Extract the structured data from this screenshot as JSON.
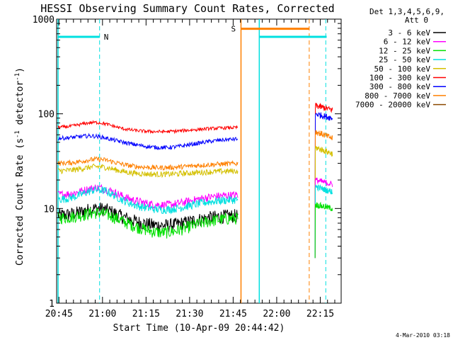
{
  "chart_data": {
    "type": "line",
    "title": "HESSI Observing Summary Count Rates, Corrected",
    "xlabel": "Start Time (10-Apr-09 20:44:42)",
    "ylabel_main": "Corrected Count Rate (s",
    "ylabel_sup1": "-1",
    "ylabel_mid": " detector",
    "ylabel_sup2": "-1",
    "ylabel_end": ")",
    "yscale": "log",
    "ylim": [
      1,
      1000
    ],
    "y_ticks": [
      1,
      10,
      100,
      1000
    ],
    "y_tick_labels": [
      "1",
      "10",
      "100",
      "1000"
    ],
    "xlim_minutes": [
      -0.5,
      97.5
    ],
    "x_ticks_minutes": [
      0.3,
      15.3,
      30.3,
      45.3,
      60.3,
      75.3,
      90.3
    ],
    "x_tick_labels": [
      "20:45",
      "21:00",
      "21:15",
      "21:30",
      "21:45",
      "22:00",
      "22:15"
    ],
    "legend_title": "Det 1,3,4,5,6,9,",
    "legend_subtitle": "Att 0",
    "series": [
      {
        "name": "3 - 6 keV",
        "color": "#000000"
      },
      {
        "name": "6 - 12 keV",
        "color": "#ff00ff"
      },
      {
        "name": "12 - 25 keV",
        "color": "#00e000"
      },
      {
        "name": "25 - 50 keV",
        "color": "#00e0e0"
      },
      {
        "name": "50 - 100 keV",
        "color": "#d4c000"
      },
      {
        "name": "100 - 300 keV",
        "color": "#ff0000"
      },
      {
        "name": "300 - 800 keV",
        "color": "#0000ff"
      },
      {
        "name": "800 - 7000 keV",
        "color": "#ff8000"
      },
      {
        "name": "7000 - 20000 keV",
        "color": "#8b4a00"
      }
    ],
    "flags": [
      {
        "label": "N",
        "color": "#00e0e0"
      },
      {
        "label": "S",
        "color": "#ff8000"
      }
    ],
    "footer_date": "4-Mar-2010 03:18"
  }
}
